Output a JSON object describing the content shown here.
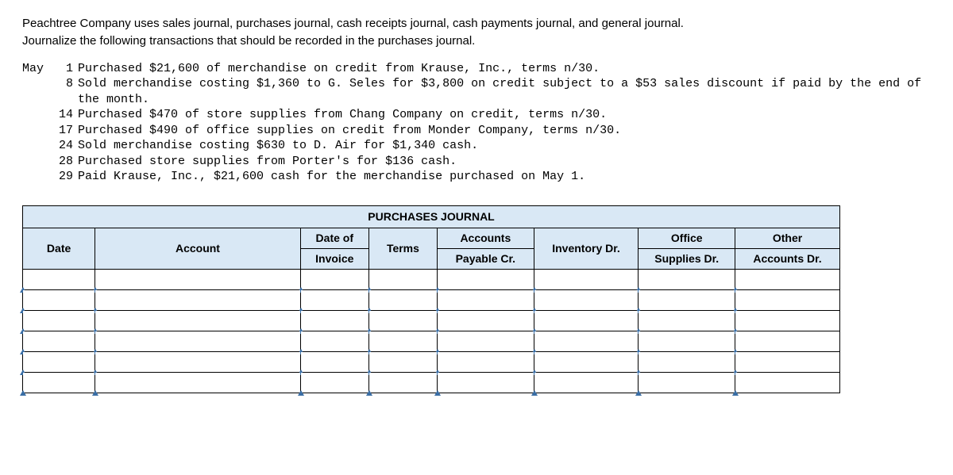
{
  "intro": {
    "line1": "Peachtree Company uses sales journal, purchases journal, cash receipts journal, cash payments journal, and general journal.",
    "line2": "Journalize the following transactions that should be recorded in the purchases journal."
  },
  "month_label": "May",
  "transactions": [
    {
      "day": "1",
      "text": "Purchased $21,600 of merchandise on credit from Krause, Inc., terms n/30."
    },
    {
      "day": "8",
      "text": "Sold merchandise costing $1,360 to G. Seles for $3,800 on credit subject to a $53 sales discount if paid by the end of the month."
    },
    {
      "day": "14",
      "text": "Purchased $470 of store supplies from Chang Company on credit, terms n/30."
    },
    {
      "day": "17",
      "text": "Purchased $490 of office supplies on credit from Monder Company, terms n/30."
    },
    {
      "day": "24",
      "text": "Sold merchandise costing $630 to D. Air for $1,340 cash."
    },
    {
      "day": "28",
      "text": "Purchased store supplies from Porter's for $136 cash."
    },
    {
      "day": "29",
      "text": "Paid Krause, Inc., $21,600 cash for the merchandise purchased on May 1."
    }
  ],
  "journal": {
    "title": "PURCHASES JOURNAL",
    "headers": {
      "date": "Date",
      "account": "Account",
      "date_of_invoice_l1": "Date of",
      "date_of_invoice_l2": "Invoice",
      "terms": "Terms",
      "ap_l1": "Accounts",
      "ap_l2": "Payable Cr.",
      "inv_dr": "Inventory Dr.",
      "sup_l1": "Office",
      "sup_l2": "Supplies Dr.",
      "other_l1": "Other",
      "other_l2": "Accounts Dr."
    },
    "row_count": 6,
    "colors": {
      "header_bg": "#d9e8f5",
      "border": "#000000",
      "marker": "#3a6ea5"
    }
  }
}
